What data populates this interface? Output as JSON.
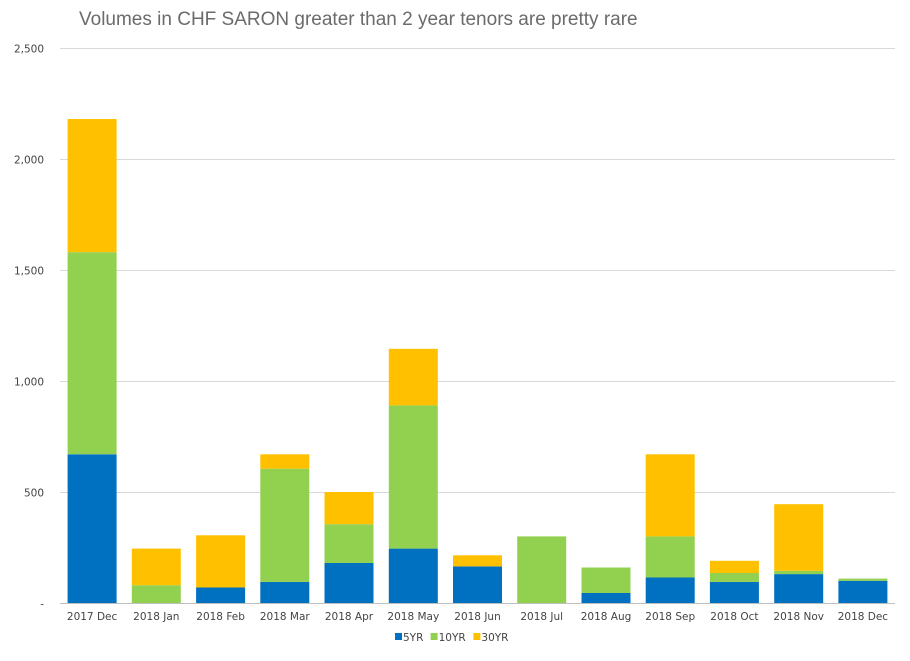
{
  "chart_data": {
    "type": "bar",
    "stacked": true,
    "title": "Volumes in CHF SARON greater than 2 year tenors are pretty rare",
    "categories": [
      "2017 Dec",
      "2018 Jan",
      "2018 Feb",
      "2018 Mar",
      "2018 Apr",
      "2018 May",
      "2018 Jun",
      "2018 Jul",
      "2018 Aug",
      "2018 Sep",
      "2018 Oct",
      "2018 Nov",
      "2018 Dec"
    ],
    "series": [
      {
        "name": "5YR",
        "color": "#0070c0",
        "values": [
          670,
          0,
          70,
          95,
          180,
          245,
          165,
          0,
          45,
          115,
          95,
          130,
          100
        ]
      },
      {
        "name": "10YR",
        "color": "#92d050",
        "values": [
          910,
          80,
          0,
          510,
          175,
          645,
          0,
          300,
          115,
          185,
          40,
          15,
          10
        ]
      },
      {
        "name": "30YR",
        "color": "#ffc000",
        "values": [
          600,
          165,
          235,
          65,
          145,
          255,
          50,
          0,
          0,
          370,
          55,
          300,
          0
        ]
      }
    ],
    "ylim": [
      0,
      2500
    ],
    "y_ticks": [
      "-",
      "500",
      "1,000",
      "1,500",
      "2,000",
      "2,500"
    ],
    "y_tick_values": [
      0,
      500,
      1000,
      1500,
      2000,
      2500
    ],
    "grid": true,
    "legend_position": "bottom",
    "xlabel": "",
    "ylabel": ""
  }
}
